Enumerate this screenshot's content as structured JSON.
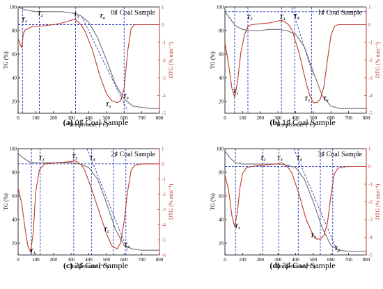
{
  "colors": {
    "tg": "#6e6e6e",
    "dtg": "#c0392b",
    "guide": "#2233bb",
    "right_axis": "#c0392b",
    "axis": "#000000"
  },
  "shared_axes": {
    "xlabel": "Temperature (°C)",
    "ylabel_left": "TG (%)",
    "ylabel_right": "DTG (% min⁻¹)"
  },
  "chart_data": [
    {
      "type": "line",
      "title": "0# Coal Sample",
      "caption_letter": "(a)",
      "caption_text": "0# Coal Sample",
      "xlim": [
        0,
        800
      ],
      "x_ticks": [
        0,
        100,
        200,
        300,
        400,
        500,
        600,
        700,
        800
      ],
      "ylim_left": [
        10,
        100
      ],
      "y_ticks_left": [
        20,
        40,
        60,
        80,
        100
      ],
      "ylim_right": [
        -5,
        1
      ],
      "y_ticks_right": [
        1,
        0,
        -1,
        -2,
        -3,
        -4,
        -5
      ],
      "series": [
        {
          "axis": "left",
          "x": [
            0,
            30,
            60,
            100,
            150,
            200,
            250,
            300,
            350,
            400,
            450,
            500,
            550,
            600,
            650,
            700,
            750,
            800
          ],
          "values": [
            100,
            98,
            97,
            96,
            96,
            96,
            96,
            95,
            93,
            87,
            74,
            55,
            35,
            22,
            16,
            15,
            14,
            14
          ]
        },
        {
          "axis": "right",
          "x": [
            0,
            20,
            25,
            30,
            40,
            60,
            80,
            120,
            150,
            200,
            250,
            300,
            320,
            340,
            360,
            380,
            420,
            460,
            500,
            530,
            560,
            580,
            600,
            620,
            640,
            660,
            700,
            750,
            800
          ],
          "values": [
            -0.8,
            -1.3,
            -0.9,
            -0.5,
            -0.3,
            -0.2,
            -0.1,
            -0.1,
            -0.05,
            0.0,
            0.1,
            0.25,
            0.3,
            0.15,
            -0.05,
            -0.4,
            -1.4,
            -2.8,
            -3.9,
            -4.3,
            -4.4,
            -4.3,
            -3.6,
            -1.5,
            -0.2,
            0.0,
            0.0,
            0.0,
            0.0
          ]
        }
      ],
      "guides": {
        "h_right": 0,
        "h_left": null,
        "v": [
          25,
          120,
          325,
          600
        ],
        "tangent_left": [
          [
            360,
            92
          ],
          [
            620,
            12
          ]
        ]
      },
      "annotations": [
        {
          "text": "T",
          "sub": "1",
          "x": 35,
          "y_left": 88
        },
        {
          "text": "T",
          "sub": "2",
          "x": 125,
          "y_left": 93
        },
        {
          "text": "T",
          "sub": "3",
          "x": 330,
          "y_left": 92
        },
        {
          "text": "T",
          "sub": "4",
          "x": 475,
          "y_left": 91
        },
        {
          "text": "T",
          "sub": "5",
          "x": 510,
          "y_left": 16
        },
        {
          "text": "T",
          "sub": "6",
          "x": 610,
          "y_left": 23
        }
      ]
    },
    {
      "type": "line",
      "title": "1# Coal Sample",
      "caption_letter": "(b)",
      "caption_text": "1# Coal Sample",
      "xlim": [
        0,
        800
      ],
      "x_ticks": [
        0,
        100,
        200,
        300,
        400,
        500,
        600,
        700,
        800
      ],
      "ylim_left": [
        10,
        100
      ],
      "y_ticks_left": [
        20,
        40,
        60,
        80,
        100
      ],
      "ylim_right": [
        -5,
        1
      ],
      "y_ticks_right": [
        1,
        0,
        -1,
        -2,
        -3,
        -4,
        -5
      ],
      "series": [
        {
          "axis": "left",
          "x": [
            0,
            30,
            60,
            100,
            130,
            160,
            200,
            250,
            300,
            350,
            400,
            450,
            500,
            550,
            600,
            650,
            700,
            750,
            800
          ],
          "values": [
            96,
            90,
            84,
            81,
            80,
            80,
            80,
            81,
            81,
            80,
            77,
            66,
            45,
            25,
            16,
            14,
            14,
            14,
            14
          ]
        },
        {
          "axis": "right",
          "x": [
            0,
            20,
            40,
            55,
            70,
            90,
            110,
            130,
            150,
            200,
            250,
            300,
            320,
            340,
            360,
            380,
            420,
            460,
            480,
            500,
            520,
            540,
            560,
            580,
            600,
            620,
            640,
            700,
            750,
            800
          ],
          "values": [
            -1.0,
            -2.2,
            -3.6,
            -4.1,
            -3.3,
            -1.6,
            -0.6,
            -0.1,
            0.0,
            0.05,
            0.1,
            0.2,
            0.25,
            0.15,
            0.0,
            -0.3,
            -1.6,
            -3.3,
            -4.0,
            -4.4,
            -4.4,
            -4.2,
            -3.5,
            -2.0,
            -0.6,
            -0.1,
            0.0,
            0.0,
            0.0,
            0.0
          ]
        }
      ],
      "guides": {
        "h_right": null,
        "h_left": 96,
        "v": [
          55,
          130,
          320,
          395,
          490
        ],
        "tangent_left": [
          [
            360,
            108
          ],
          [
            500,
            42
          ]
        ]
      },
      "annotations": [
        {
          "text": "T",
          "sub": "1",
          "x": 60,
          "y_left": 27
        },
        {
          "text": "T",
          "sub": "2",
          "x": 140,
          "y_left": 90
        },
        {
          "text": "T",
          "sub": "3",
          "x": 325,
          "y_left": 90
        },
        {
          "text": "T",
          "sub": "4",
          "x": 405,
          "y_left": 91
        },
        {
          "text": "T",
          "sub": "5",
          "x": 465,
          "y_left": 21
        },
        {
          "text": "T",
          "sub": "6",
          "x": 570,
          "y_left": 21
        }
      ]
    },
    {
      "type": "line",
      "title": "2# Coal Sample",
      "caption_letter": "(c)",
      "caption_text": "2# Coal Sample",
      "xlim": [
        0,
        800
      ],
      "x_ticks": [
        0,
        100,
        200,
        300,
        400,
        500,
        600,
        700,
        800
      ],
      "ylim_left": [
        10,
        100
      ],
      "y_ticks_left": [
        20,
        40,
        60,
        80,
        100
      ],
      "ylim_right": [
        -6,
        1
      ],
      "y_ticks_right": [
        1,
        0,
        -1,
        -2,
        -3,
        -4,
        -5,
        -6
      ],
      "series": [
        {
          "axis": "left",
          "x": [
            0,
            30,
            60,
            100,
            150,
            200,
            250,
            300,
            350,
            400,
            450,
            500,
            550,
            600,
            650,
            700,
            750,
            800
          ],
          "values": [
            96,
            92,
            89,
            88,
            88,
            88,
            88,
            88,
            87,
            84,
            74,
            54,
            32,
            18,
            15,
            14,
            14,
            14
          ]
        },
        {
          "axis": "right",
          "x": [
            0,
            20,
            40,
            55,
            70,
            85,
            100,
            120,
            150,
            200,
            250,
            300,
            320,
            340,
            360,
            380,
            420,
            460,
            500,
            530,
            560,
            580,
            600,
            620,
            640,
            660,
            700,
            750,
            800
          ],
          "values": [
            -1.6,
            -2.6,
            -4.3,
            -5.4,
            -5.8,
            -4.6,
            -1.8,
            -0.4,
            0.0,
            0.05,
            0.1,
            0.15,
            0.2,
            0.1,
            -0.1,
            -0.5,
            -1.8,
            -3.2,
            -4.6,
            -5.4,
            -5.6,
            -5.2,
            -3.8,
            -1.8,
            -0.4,
            -0.1,
            0.0,
            0.0,
            0.0
          ]
        }
      ],
      "guides": {
        "h_right": 0,
        "h_left": null,
        "v": [
          75,
          125,
          315,
          415,
          540,
          610
        ],
        "tangent_left": [
          [
            390,
            100
          ],
          [
            620,
            14
          ]
        ]
      },
      "annotations": [
        {
          "text": "T",
          "sub": "1",
          "x": 82,
          "y_left": 12
        },
        {
          "text": "T",
          "sub": "2",
          "x": 132,
          "y_left": 91
        },
        {
          "text": "T",
          "sub": "3",
          "x": 320,
          "y_left": 92
        },
        {
          "text": "T",
          "sub": "4",
          "x": 420,
          "y_left": 91
        },
        {
          "text": "T",
          "sub": "5",
          "x": 500,
          "y_left": 30
        },
        {
          "text": "T",
          "sub": "6",
          "x": 615,
          "y_left": 17
        }
      ]
    },
    {
      "type": "line",
      "title": "3# Coal Sample",
      "caption_letter": "(d)",
      "caption_text": "3# Coal Sample",
      "xlim": [
        0,
        800
      ],
      "x_ticks": [
        0,
        100,
        200,
        300,
        400,
        500,
        600,
        700,
        800
      ],
      "ylim_left": [
        10,
        100
      ],
      "y_ticks_left": [
        20,
        40,
        60,
        80,
        100
      ],
      "ylim_right": [
        -5,
        1
      ],
      "y_ticks_right": [
        1,
        0,
        -1,
        -2,
        -3,
        -4,
        -5
      ],
      "series": [
        {
          "axis": "left",
          "x": [
            0,
            30,
            60,
            100,
            150,
            200,
            250,
            300,
            350,
            400,
            450,
            500,
            550,
            600,
            650,
            700,
            750,
            800
          ],
          "values": [
            98,
            92,
            88,
            87,
            87,
            87,
            87,
            87,
            86,
            84,
            74,
            55,
            33,
            18,
            14,
            13,
            13,
            13
          ]
        },
        {
          "axis": "right",
          "x": [
            0,
            20,
            40,
            55,
            70,
            85,
            100,
            120,
            150,
            200,
            250,
            300,
            320,
            340,
            360,
            380,
            420,
            460,
            500,
            520,
            540,
            560,
            580,
            600,
            620,
            640,
            700,
            750,
            800
          ],
          "values": [
            -0.5,
            -1.3,
            -2.8,
            -3.4,
            -2.6,
            -1.2,
            -0.4,
            -0.1,
            0.0,
            0.05,
            0.1,
            0.15,
            0.2,
            0.1,
            -0.1,
            -0.4,
            -1.6,
            -3.0,
            -3.9,
            -4.1,
            -4.1,
            -3.9,
            -3.2,
            -1.6,
            -0.4,
            -0.1,
            0.0,
            0.0,
            0.0
          ]
        }
      ],
      "guides": {
        "h_right": 0,
        "h_left": null,
        "v": [
          60,
          215,
          305,
          415,
          540,
          610
        ],
        "tangent_left": [
          [
            390,
            100
          ],
          [
            640,
            12
          ]
        ]
      },
      "annotations": [
        {
          "text": "T",
          "sub": "1",
          "x": 70,
          "y_left": 33
        },
        {
          "text": "T",
          "sub": "2",
          "x": 215,
          "y_left": 91
        },
        {
          "text": "T",
          "sub": "3",
          "x": 310,
          "y_left": 91
        },
        {
          "text": "T",
          "sub": "4",
          "x": 420,
          "y_left": 91
        },
        {
          "text": "T",
          "sub": "5",
          "x": 500,
          "y_left": 25
        },
        {
          "text": "T",
          "sub": "6",
          "x": 635,
          "y_left": 14
        }
      ]
    }
  ]
}
